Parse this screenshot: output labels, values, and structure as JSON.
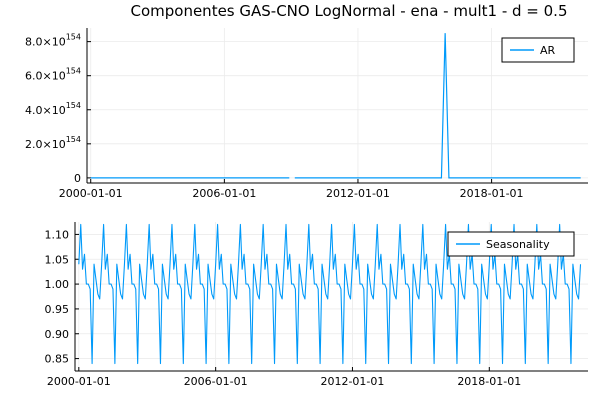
{
  "title": "Componentes GAS-CNO LogNormal - ena - mult1 - d = 0.5",
  "colors": {
    "series": "#009AFA",
    "grid": "#ebebeb",
    "axis": "#000000"
  },
  "chart_data": [
    {
      "type": "line",
      "series": [
        {
          "name": "AR"
        }
      ],
      "xlim": [
        "1999-11-01",
        "2022-05-01"
      ],
      "ylim": [
        -3e+153,
        8.8e+154
      ],
      "yticks": [
        {
          "value": 0,
          "mant": "0",
          "exp": ""
        },
        {
          "value": 2e+154,
          "mant": "2.0×10",
          "exp": "154"
        },
        {
          "value": 4e+154,
          "mant": "4.0×10",
          "exp": "154"
        },
        {
          "value": 6e+154,
          "mant": "6.0×10",
          "exp": "154"
        },
        {
          "value": 8e+154,
          "mant": "8.0×10",
          "exp": "154"
        }
      ],
      "xticks": [
        "2000-01-01",
        "2006-01-01",
        "2012-01-01",
        "2018-01-01"
      ],
      "points": [
        [
          "2000-01-01",
          0
        ],
        [
          "2008-12-01",
          0
        ],
        [
          "2009-03-01",
          0
        ],
        [
          "2015-10-01",
          0
        ],
        [
          "2015-12-01",
          8.5e+154
        ],
        [
          "2016-02-01",
          0
        ],
        [
          "2022-01-01",
          0
        ]
      ],
      "gaps": [
        [
          "2008-12-01",
          "2009-03-01"
        ]
      ],
      "grid": true,
      "legend": "top-right"
    },
    {
      "type": "line",
      "series": [
        {
          "name": "Seasonality"
        }
      ],
      "xlim": [
        "1999-11-01",
        "2022-05-01"
      ],
      "ylim": [
        0.825,
        1.125
      ],
      "yticks": [
        0.85,
        0.9,
        0.95,
        1.0,
        1.05,
        1.1
      ],
      "ytick_labels": [
        "0.85",
        "0.90",
        "0.95",
        "1.00",
        "1.05",
        "1.10"
      ],
      "xticks": [
        "2000-01-01",
        "2006-01-01",
        "2012-01-01",
        "2018-01-01"
      ],
      "start": "2000-01-01",
      "monthly_cycle": [
        1.04,
        1.12,
        1.03,
        1.06,
        1.0,
        1.0,
        0.99,
        0.84,
        1.04,
        1.01,
        0.98,
        0.97
      ],
      "n_months": 265,
      "grid": true,
      "legend": "top-right"
    }
  ]
}
